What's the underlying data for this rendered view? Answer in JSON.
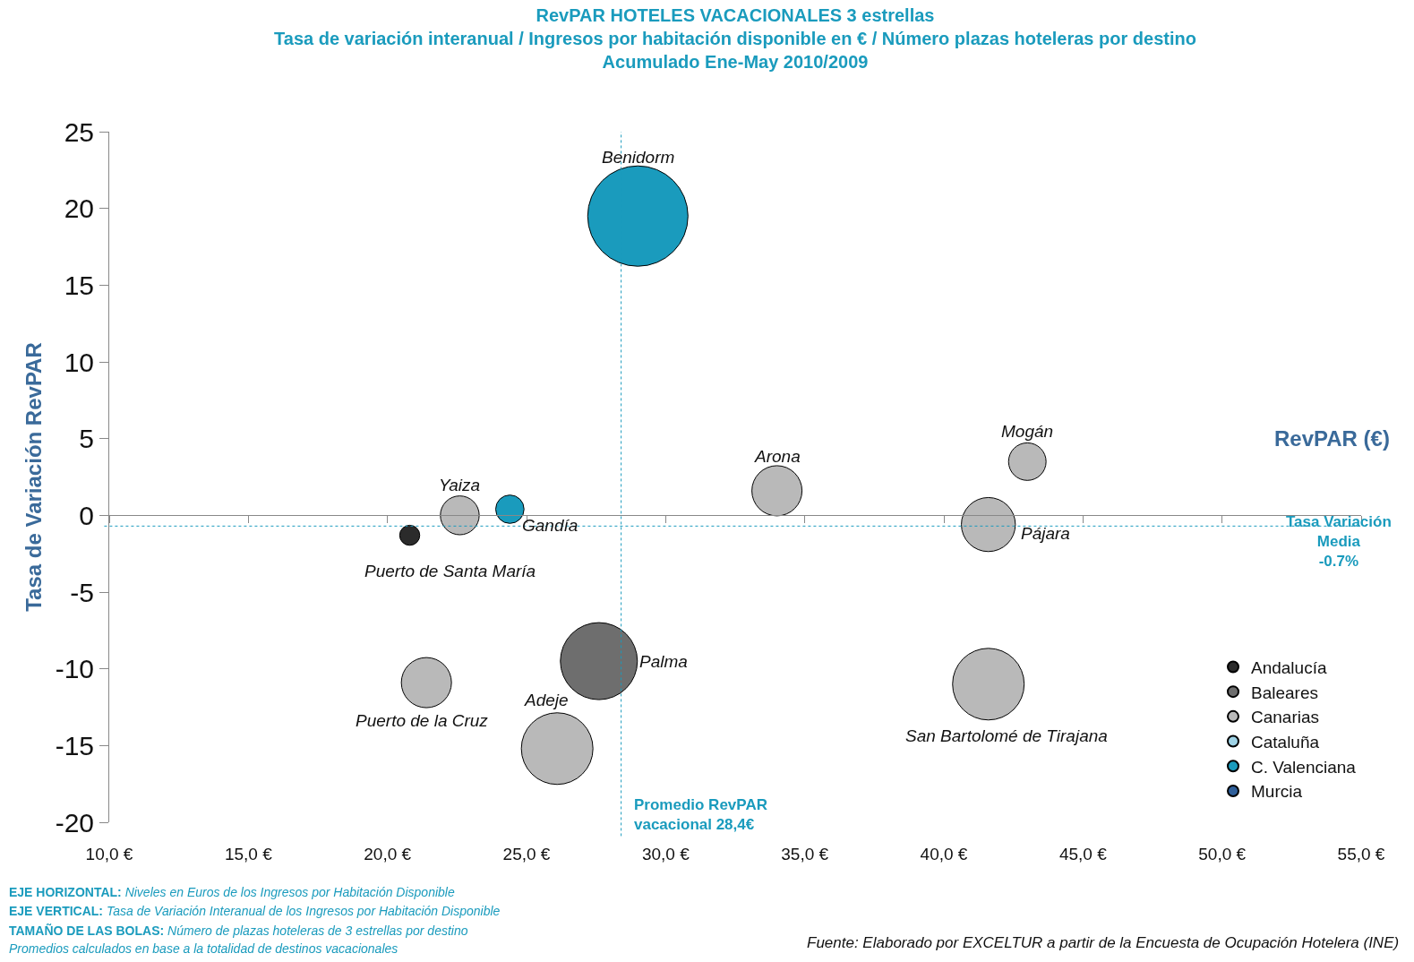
{
  "chart_data": {
    "type": "bubble",
    "title": "RevPAR HOTELES VACACIONALES 3 estrellas",
    "subtitle": "Tasa de variación interanual / Ingresos por habitación disponible en € / Número plazas hoteleras por destino\nAcumulado Ene-May 2010/2009",
    "xlabel": "RevPAR (€)",
    "ylabel": "Tasa de Variación RevPAR",
    "xlim": [
      10,
      55
    ],
    "xticks": [
      {
        "value": 10,
        "label": "10,0 €"
      },
      {
        "value": 15,
        "label": "15,0 €"
      },
      {
        "value": 20,
        "label": "20,0 €"
      },
      {
        "value": 25,
        "label": "25,0 €"
      },
      {
        "value": 30,
        "label": "30,0 €"
      },
      {
        "value": 35,
        "label": "35,0 €"
      },
      {
        "value": 40,
        "label": "40,0 €"
      },
      {
        "value": 45,
        "label": "45,0 €"
      },
      {
        "value": 50,
        "label": "50,0 €"
      },
      {
        "value": 55,
        "label": "55,0 €"
      }
    ],
    "ylim": [
      -20,
      25
    ],
    "yticks": [
      -20,
      -15,
      -10,
      -5,
      0,
      5,
      10,
      15,
      20,
      25
    ],
    "legend": "bottom right",
    "marker": "circle",
    "series": [
      {
        "name": "Andalucía",
        "color": "#2b2b2b",
        "x": [
          20.8
        ],
        "values": [
          -1.3
        ],
        "sizes": [
          0.04
        ]
      },
      {
        "name": "Baleares",
        "color": "#6e6e6e",
        "x": [
          27.6
        ],
        "values": [
          -9.5
        ],
        "sizes": [
          0.59
        ]
      },
      {
        "name": "Canarias",
        "color": "#b9b9b9",
        "x": [
          22.6,
          34.0,
          43.0,
          41.6,
          21.4,
          26.1,
          41.6
        ],
        "values": [
          0.0,
          1.6,
          3.5,
          -0.6,
          -10.9,
          -15.2,
          -11.0
        ],
        "sizes": [
          0.15,
          0.25,
          0.14,
          0.29,
          0.25,
          0.51,
          0.51
        ]
      },
      {
        "name": "Cataluña",
        "color": "#9fd3e6"
      },
      {
        "name": "C. Valenciana",
        "color": "#1a9bbd",
        "x": [
          29.0,
          24.4
        ],
        "values": [
          19.5,
          0.4
        ],
        "sizes": [
          1,
          0.08
        ]
      },
      {
        "name": "Murcia",
        "color": "#2f5f9a"
      }
    ],
    "ref_lines": [
      {
        "axis": "x",
        "value": 28.4,
        "label": "Promedio RevPAR\nvacacional 28,4€",
        "color": "#1a9bbd",
        "line_style": "dotted"
      },
      {
        "axis": "y",
        "value": -0.7,
        "label": "Tasa Variación\nMedia\n-0.7%",
        "color": "#1a9bbd",
        "line_style": "dotted"
      }
    ],
    "annotations": [
      {
        "text": "Benidorm",
        "x": 29.0,
        "y": 19.5
      },
      {
        "text": "Gandía",
        "x": 24.4,
        "y": 0.4
      },
      {
        "text": "Yaiza",
        "x": 22.6,
        "y": 0.0
      },
      {
        "text": "Puerto de Santa María",
        "x": 20.8,
        "y": -1.3
      },
      {
        "text": "Arona",
        "x": 34.0,
        "y": 1.6
      },
      {
        "text": "Mogán",
        "x": 43.0,
        "y": 3.5
      },
      {
        "text": "Pájara",
        "x": 41.6,
        "y": -0.6
      },
      {
        "text": "Palma",
        "x": 27.6,
        "y": -9.5
      },
      {
        "text": "Puerto de la Cruz",
        "x": 21.4,
        "y": -10.9
      },
      {
        "text": "Adeje",
        "x": 26.1,
        "y": -15.2
      },
      {
        "text": "San Bartolomé de Tirajana",
        "x": 41.6,
        "y": -11.0
      },
      "EJE HORIZONTAL: Niveles en Euros de los Ingresos por Habitación Disponible",
      "EJE VERTICAL: Tasa de Variación Interanual de los Ingresos por Habitación Disponible",
      "TAMAÑO DE LAS BOLAS: Número de plazas hoteleras de 3 estrellas por destino",
      "Promedios calculados en base a la totalidad de destinos vacacionales",
      "Fuente: Elaborado por EXCELTUR a partir de la Encuesta de Ocupación Hotelera (INE)"
    ]
  }
}
